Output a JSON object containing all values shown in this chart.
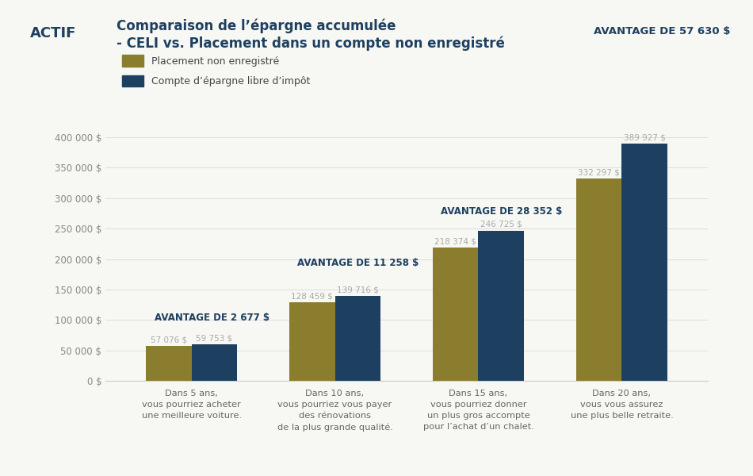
{
  "title_line1": "Comparaison de l’épargne accumulée",
  "title_line2": "- CELI vs. Placement dans un compte non enregistré",
  "actif_label": "ACTIF",
  "background_color": "#f7f7f3",
  "bar_color_nonreg": "#8b7d2e",
  "bar_color_celi": "#1e4060",
  "categories": [
    "Dans 5 ans,\nvous pourriez acheter\nune meilleure voiture.",
    "Dans 10 ans,\nvous pourriez vous payer\ndes rénovations\nde la plus grande qualité.",
    "Dans 15 ans,\nvous pourriez donner\nun plus gros accompte\npour l’achat d’un chalet.",
    "Dans 20 ans,\nvous vous assurez\nune plus belle retraite."
  ],
  "values_nonreg": [
    57076,
    128459,
    218374,
    332297
  ],
  "values_celi": [
    59753,
    139716,
    246725,
    389927
  ],
  "labels_nonreg": [
    "57 076 $",
    "128 459 $",
    "218 374 $",
    "332 297 $"
  ],
  "labels_celi": [
    "59 753 $",
    "139 716 $",
    "246 725 $",
    "389 927 $"
  ],
  "avantage_labels": [
    "AVANTAGE DE 2 677 $",
    "AVANTAGE DE 11 258 $",
    "AVANTAGE DE 28 352 $",
    "AVANTAGE DE 57 630 $"
  ],
  "legend_nonreg": "Placement non enregistré",
  "legend_celi": "Compte d’épargne libre d’impôt",
  "ylim": [
    0,
    430000
  ],
  "yticks": [
    0,
    50000,
    100000,
    150000,
    200000,
    250000,
    300000,
    350000,
    400000
  ],
  "ytick_labels": [
    "0 $",
    "50 000 $",
    "100 000 $",
    "150 000 $",
    "200 000 $",
    "250 000 $",
    "300 000 $",
    "350 000 $",
    "400 000 $"
  ],
  "title_color": "#1e4060",
  "avantage_color": "#1e4060",
  "label_color": "#aaaaaa",
  "actif_color": "#1e4060",
  "bar_width": 0.32
}
